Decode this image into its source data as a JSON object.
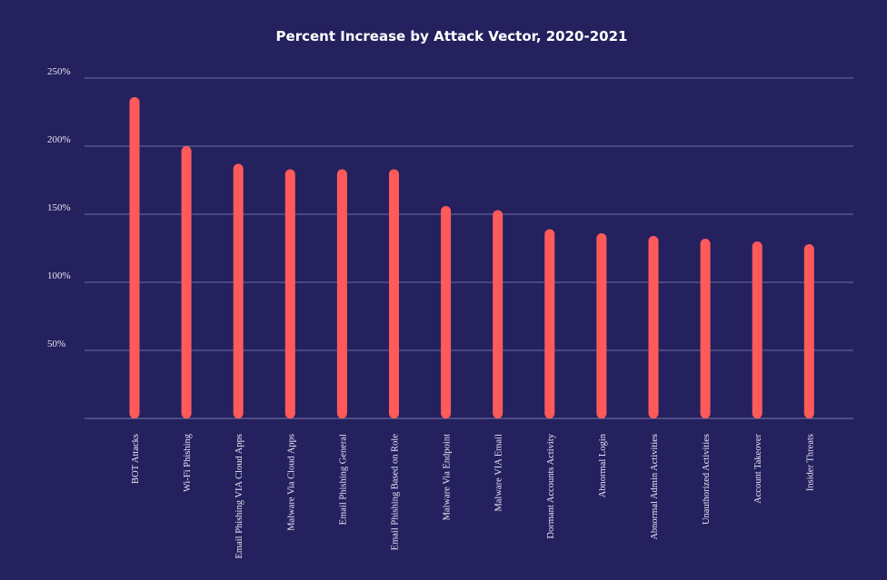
{
  "chart_data": {
    "type": "bar",
    "title": "Percent Increase by Attack Vector, 2020-2021",
    "xlabel": "",
    "ylabel": "",
    "ylim": [
      0,
      250
    ],
    "yticks": [
      50,
      100,
      150,
      200,
      250
    ],
    "ytick_labels": [
      "50%",
      "100%",
      "150%",
      "200%",
      "250%"
    ],
    "grid": true,
    "legend": "none",
    "categories": [
      "BOT Attacks",
      "Wi-Fi Phishing",
      "Email Phishing VIA Cloud Apps",
      "Malware Via Cloud Apps",
      "Email Phishing General",
      "Email Phishing Based on Role",
      "Malware Via Endpoint",
      "Malware VIA Email",
      "Dormant Accounts Activity",
      "Abnormal Login",
      "Abnormal Admin Activities",
      "Unauthorized Activities",
      "Account Takeover",
      "Insider Threats"
    ],
    "values": [
      236,
      200,
      187,
      183,
      183,
      183,
      156,
      153,
      139,
      136,
      134,
      132,
      130,
      128
    ],
    "colors": {
      "background": "#24215e",
      "bar": "#ff5a5a",
      "text": "#ffffff",
      "grid": "#8a86b8"
    }
  }
}
